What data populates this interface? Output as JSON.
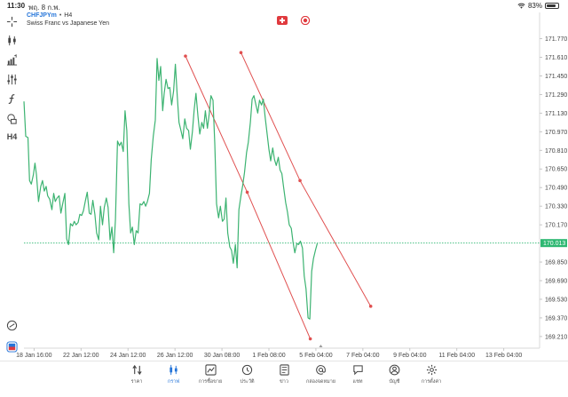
{
  "status_bar": {
    "time": "11:30",
    "date": "พฤ. 8 ก.พ.",
    "battery": "83%",
    "battery_level": 0.83
  },
  "header": {
    "symbol": "CHFJPYm",
    "separator": "•",
    "timeframe": "H4",
    "description": "Swiss Franc vs Japanese Yen"
  },
  "left_toolbar": {
    "items": [
      {
        "name": "crosshair-icon"
      },
      {
        "name": "candlestick-icon"
      },
      {
        "name": "bar-chart-icon"
      },
      {
        "name": "indicators-icon"
      },
      {
        "name": "function-icon"
      },
      {
        "name": "objects-icon"
      },
      {
        "name": "timeframe-label",
        "label": "H4"
      }
    ],
    "bottom_items": [
      {
        "name": "gauge-icon"
      },
      {
        "name": "trading-icon"
      }
    ]
  },
  "chart_data": {
    "type": "line",
    "title": "",
    "xlabel": "",
    "ylabel": "",
    "line_color": "#3cb371",
    "current_price": "170.013",
    "current_price_value": 170.013,
    "current_price_color": "#2eb872",
    "ylim": [
      169.11,
      171.85
    ],
    "y_ticks": [
      "171.770",
      "171.610",
      "171.450",
      "171.290",
      "171.130",
      "170.970",
      "170.810",
      "170.650",
      "170.490",
      "170.330",
      "170.170",
      "169.850",
      "169.690",
      "169.530",
      "169.370",
      "169.210"
    ],
    "y_tick_values": [
      171.77,
      171.61,
      171.45,
      171.29,
      171.13,
      170.97,
      170.81,
      170.65,
      170.49,
      170.33,
      170.17,
      169.85,
      169.69,
      169.53,
      169.37,
      169.21
    ],
    "x_ticks": [
      "18 Jan 16:00",
      "22 Jan 12:00",
      "24 Jan 12:00",
      "26 Jan 12:00",
      "30 Jan 08:00",
      "1 Feb 08:00",
      "5 Feb 04:00",
      "7 Feb 04:00",
      "9 Feb 04:00",
      "11 Feb 04:00",
      "13 Feb 04:00"
    ],
    "x_tick_values": [
      23,
      44,
      65,
      86,
      107,
      128,
      149,
      170,
      191,
      212,
      233
    ],
    "xlim": [
      18.5,
      249
    ],
    "series": [
      {
        "values": [
          [
            18.5,
            171.23
          ],
          [
            19.3,
            170.93
          ],
          [
            20.3,
            170.92
          ],
          [
            21.0,
            170.55
          ],
          [
            21.8,
            170.52
          ],
          [
            22.7,
            170.6
          ],
          [
            23.4,
            170.7
          ],
          [
            24.1,
            170.6
          ],
          [
            25.0,
            170.37
          ],
          [
            26.0,
            170.5
          ],
          [
            26.8,
            170.55
          ],
          [
            27.6,
            170.46
          ],
          [
            28.4,
            170.5
          ],
          [
            29.1,
            170.42
          ],
          [
            30.0,
            170.39
          ],
          [
            31.0,
            170.3
          ],
          [
            31.8,
            170.44
          ],
          [
            32.5,
            170.37
          ],
          [
            33.3,
            170.4
          ],
          [
            34.2,
            170.42
          ],
          [
            35.0,
            170.27
          ],
          [
            35.9,
            170.36
          ],
          [
            36.8,
            170.44
          ],
          [
            37.6,
            170.05
          ],
          [
            38.4,
            170.0
          ],
          [
            39.3,
            170.18
          ],
          [
            40.2,
            170.16
          ],
          [
            41.0,
            170.2
          ],
          [
            41.8,
            170.17
          ],
          [
            42.7,
            170.19
          ],
          [
            43.5,
            170.26
          ],
          [
            44.3,
            170.25
          ],
          [
            45.1,
            170.29
          ],
          [
            46.0,
            170.38
          ],
          [
            46.8,
            170.45
          ],
          [
            47.7,
            170.27
          ],
          [
            48.5,
            170.26
          ],
          [
            49.3,
            170.38
          ],
          [
            50.2,
            170.26
          ],
          [
            51.0,
            170.1
          ],
          [
            51.9,
            170.04
          ],
          [
            52.7,
            170.33
          ],
          [
            53.6,
            170.17
          ],
          [
            54.4,
            170.32
          ],
          [
            55.3,
            170.4
          ],
          [
            56.1,
            170.32
          ],
          [
            57.0,
            170.04
          ],
          [
            57.8,
            170.15
          ],
          [
            58.6,
            169.93
          ],
          [
            59.4,
            170.22
          ],
          [
            60.3,
            170.89
          ],
          [
            61.2,
            170.85
          ],
          [
            62.0,
            170.88
          ],
          [
            62.9,
            170.8
          ],
          [
            63.7,
            171.15
          ],
          [
            64.5,
            170.98
          ],
          [
            65.4,
            170.35
          ],
          [
            66.2,
            170.1
          ],
          [
            67.0,
            170.15
          ],
          [
            67.8,
            170.0
          ],
          [
            68.7,
            170.12
          ],
          [
            69.5,
            170.1
          ],
          [
            70.4,
            170.35
          ],
          [
            71.2,
            170.34
          ],
          [
            72.1,
            170.37
          ],
          [
            72.9,
            170.33
          ],
          [
            73.7,
            170.37
          ],
          [
            74.6,
            170.44
          ],
          [
            75.4,
            170.73
          ],
          [
            76.3,
            170.93
          ],
          [
            77.2,
            171.07
          ],
          [
            78.0,
            171.6
          ],
          [
            78.8,
            171.41
          ],
          [
            79.6,
            171.53
          ],
          [
            80.5,
            171.15
          ],
          [
            81.2,
            171.3
          ],
          [
            82.0,
            171.42
          ],
          [
            82.9,
            171.34
          ],
          [
            83.7,
            171.35
          ],
          [
            84.5,
            171.2
          ],
          [
            85.4,
            171.32
          ],
          [
            86.2,
            171.55
          ],
          [
            87.0,
            171.28
          ],
          [
            87.8,
            171.05
          ],
          [
            88.7,
            170.98
          ],
          [
            89.5,
            170.91
          ],
          [
            90.4,
            171.08
          ],
          [
            91.2,
            171.0
          ],
          [
            92.1,
            170.98
          ],
          [
            92.9,
            170.82
          ],
          [
            93.8,
            170.97
          ],
          [
            94.6,
            171.16
          ],
          [
            95.4,
            171.3
          ],
          [
            96.3,
            171.1
          ],
          [
            97.1,
            170.95
          ],
          [
            98.0,
            171.05
          ],
          [
            98.8,
            171.0
          ],
          [
            99.6,
            171.15
          ],
          [
            100.5,
            171.0
          ],
          [
            101.3,
            171.12
          ],
          [
            102.1,
            171.28
          ],
          [
            103.0,
            171.24
          ],
          [
            103.8,
            170.87
          ],
          [
            104.6,
            170.35
          ],
          [
            105.5,
            170.23
          ],
          [
            106.3,
            170.33
          ],
          [
            107.2,
            170.2
          ],
          [
            108.0,
            170.22
          ],
          [
            108.8,
            170.4
          ],
          [
            109.6,
            170.1
          ],
          [
            110.5,
            169.98
          ],
          [
            111.3,
            169.95
          ],
          [
            112.1,
            169.84
          ],
          [
            113.0,
            170.0
          ],
          [
            113.8,
            169.8
          ],
          [
            114.6,
            170.3
          ],
          [
            115.5,
            170.42
          ],
          [
            116.3,
            170.51
          ],
          [
            117.1,
            170.62
          ],
          [
            118.0,
            170.79
          ],
          [
            118.8,
            170.88
          ],
          [
            119.7,
            171.05
          ],
          [
            120.5,
            171.25
          ],
          [
            121.3,
            171.28
          ],
          [
            122.2,
            171.2
          ],
          [
            123.0,
            171.13
          ],
          [
            123.8,
            171.24
          ],
          [
            124.7,
            171.2
          ],
          [
            125.5,
            171.25
          ],
          [
            126.3,
            171.1
          ],
          [
            127.2,
            170.95
          ],
          [
            128.0,
            170.82
          ],
          [
            128.8,
            170.72
          ],
          [
            129.7,
            170.83
          ],
          [
            130.5,
            170.73
          ],
          [
            131.3,
            170.68
          ],
          [
            132.2,
            170.75
          ],
          [
            133.0,
            170.64
          ],
          [
            133.8,
            170.61
          ],
          [
            134.6,
            170.49
          ],
          [
            135.5,
            170.36
          ],
          [
            136.3,
            170.28
          ],
          [
            137.1,
            170.17
          ],
          [
            138.0,
            170.14
          ],
          [
            138.8,
            170.02
          ],
          [
            139.6,
            169.93
          ],
          [
            140.5,
            170.01
          ],
          [
            141.3,
            170.0
          ],
          [
            142.1,
            170.03
          ],
          [
            143.0,
            169.97
          ],
          [
            143.8,
            169.73
          ],
          [
            144.6,
            169.62
          ],
          [
            145.5,
            169.37
          ],
          [
            146.3,
            169.36
          ],
          [
            147.1,
            169.77
          ],
          [
            147.9,
            169.88
          ],
          [
            148.8,
            169.95
          ],
          [
            149.6,
            170.01
          ]
        ]
      }
    ],
    "trend_lines": [
      {
        "points": [
          [
            90.7,
            171.62
          ],
          [
            118.3,
            170.45
          ],
          [
            146.5,
            169.19
          ]
        ],
        "color": "#e05050"
      },
      {
        "points": [
          [
            115.5,
            171.65
          ],
          [
            141.9,
            170.55
          ],
          [
            173.5,
            169.47
          ]
        ],
        "color": "#e05050"
      }
    ]
  },
  "flags": {
    "base": "CH",
    "quote": "JP"
  },
  "bottom_nav": {
    "items": [
      {
        "name": "nav-quotes",
        "icon": "quotes-icon",
        "label": "ราคา"
      },
      {
        "name": "nav-chart",
        "icon": "chart-icon",
        "label": "กราฟ",
        "active": true
      },
      {
        "name": "nav-trade",
        "icon": "trade-icon",
        "label": "การซื้อขาย"
      },
      {
        "name": "nav-history",
        "icon": "history-icon",
        "label": "ประวัติ"
      },
      {
        "name": "nav-news",
        "icon": "news-icon",
        "label": "ข่าว"
      },
      {
        "name": "nav-mailbox",
        "icon": "mail-icon",
        "label": "กล่องจดหมาย"
      },
      {
        "name": "nav-chat",
        "icon": "chat-icon",
        "label": "แชท"
      },
      {
        "name": "nav-accounts",
        "icon": "account-icon",
        "label": "บัญชี"
      },
      {
        "name": "nav-settings",
        "icon": "settings-icon",
        "label": "การตั้งค่า"
      }
    ]
  }
}
